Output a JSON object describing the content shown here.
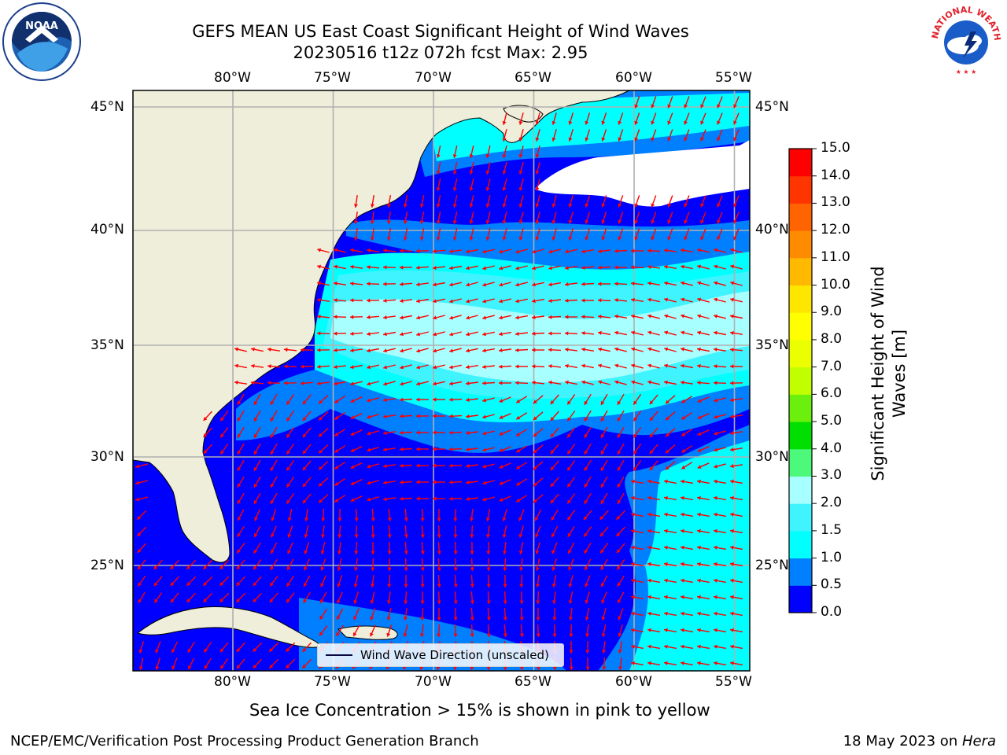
{
  "header": {
    "title_line1": "GEFS MEAN US East Coast Significant Height of Wind Waves",
    "title_line2": "20230516 t12z 072h fcst   Max: 2.95"
  },
  "logos": {
    "left": {
      "name": "NOAA",
      "ring_text": "NATIONAL OCEANIC AND ATMOSPHERIC ADMINISTRATION · U.S. DEPARTMENT OF COMMERCE",
      "center_text": "NOAA"
    },
    "right": {
      "name": "NWS",
      "ring_text": "NATIONAL WEATHER SERVICE"
    }
  },
  "map": {
    "lon_labels": [
      "80°W",
      "75°W",
      "70°W",
      "65°W",
      "60°W",
      "55°W"
    ],
    "lat_labels": [
      "45°N",
      "40°N",
      "35°N",
      "30°N",
      "25°N"
    ],
    "lon_values": [
      -80,
      -75,
      -70,
      -65,
      -60,
      -55
    ],
    "lat_values": [
      45,
      40,
      35,
      30,
      25
    ],
    "extent": {
      "lon_min": -85,
      "lon_max": -54.5,
      "lat_min": 20.5,
      "lat_max": 46
    },
    "land_color": "#efeedb",
    "arrow_color": "#ff0000",
    "legend_label": "Wind Wave Direction (unscaled)"
  },
  "colorbar": {
    "label": "Significant Height of Wind Waves [m]",
    "label_line1": "Significant Height of Wind",
    "label_line2": "Waves [m]",
    "ticks": [
      "0.0",
      "0.5",
      "1.0",
      "1.5",
      "2.0",
      "3.0",
      "4.0",
      "5.0",
      "6.0",
      "7.0",
      "8.0",
      "9.0",
      "10.0",
      "11.0",
      "12.0",
      "13.0",
      "14.0",
      "15.0"
    ],
    "colors": [
      "#0000ff",
      "#007fff",
      "#00ffff",
      "#3ff4ff",
      "#a8ffff",
      "#4cf97a",
      "#00df00",
      "#6bf00d",
      "#c1ff00",
      "#ecff00",
      "#ffff00",
      "#ffe600",
      "#ffb900",
      "#ff8c00",
      "#ff6400",
      "#ff3500",
      "#ff0000"
    ]
  },
  "notes": {
    "sea_ice": "Sea Ice Concentration > 15% is shown in pink to yellow"
  },
  "footer": {
    "left": "NCEP/EMC/Verification Post Processing Product Generation Branch",
    "right_date": "18 May 2023 on ",
    "right_host": "Hera"
  }
}
